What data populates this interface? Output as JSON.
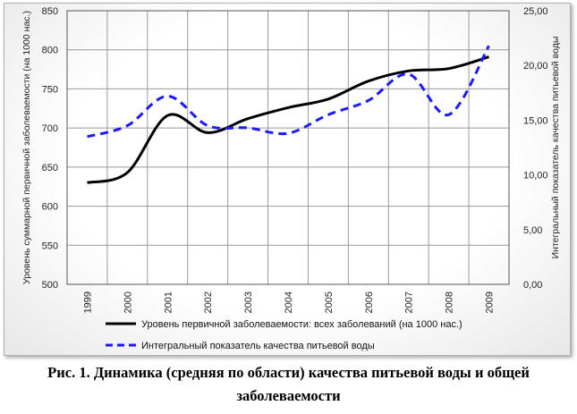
{
  "chart_data": {
    "type": "line",
    "x": [
      "1999",
      "2000",
      "2001",
      "2002",
      "2003",
      "2004",
      "2005",
      "2006",
      "2007",
      "2008",
      "2009"
    ],
    "series": [
      {
        "name": "Уровень первичной заболеваемости: всех заболеваний (на 1000 нас.)",
        "axis": "left",
        "color": "#000000",
        "style": "solid",
        "values": [
          630,
          643,
          716,
          694,
          712,
          726,
          737,
          760,
          773,
          776,
          791
        ]
      },
      {
        "name": "Интегральный показатель качества питьевой воды",
        "axis": "right",
        "color": "#1a1aff",
        "style": "dashed",
        "values": [
          13.5,
          14.5,
          17.2,
          14.5,
          14.3,
          13.8,
          15.5,
          16.8,
          19.2,
          15.5,
          21.8
        ]
      }
    ],
    "y_left": {
      "label": "Уровень суммарной первичной заболеваемости (на 1000 нас.)",
      "ylim": [
        500,
        850
      ],
      "ticks": [
        "500",
        "550",
        "600",
        "650",
        "700",
        "750",
        "800",
        "850"
      ]
    },
    "y_right": {
      "label": "Интегральный показатель качества питьевой воды",
      "ylim": [
        0,
        25
      ],
      "ticks": [
        "0,00",
        "5,00",
        "10,00",
        "15,00",
        "20,00",
        "25,00"
      ]
    },
    "grid": true,
    "legend_position": "bottom"
  },
  "caption_line1": "Рис. 1. Динамика (средняя по области) качества питьевой воды и общей",
  "caption_line2": "заболеваемости"
}
